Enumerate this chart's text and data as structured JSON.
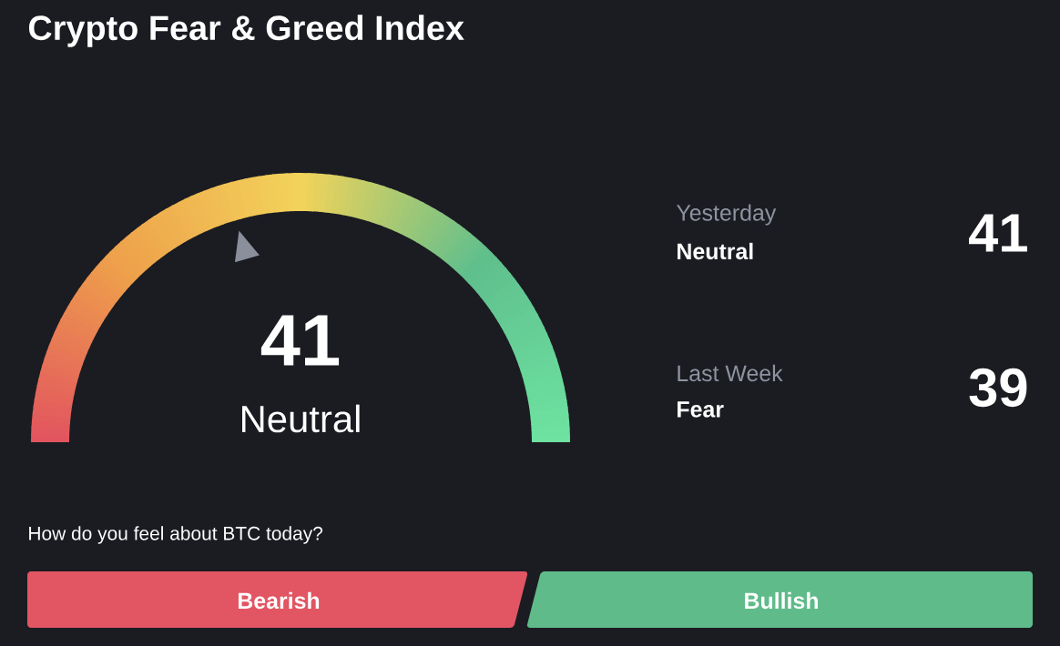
{
  "chart_data": {
    "type": "other",
    "title": "Crypto Fear & Greed Index",
    "values": [
      41
    ],
    "categories": [
      "Neutral"
    ],
    "data_labels": true,
    "annotations": [
      "Yesterday",
      "Neutral",
      "41",
      "Last Week",
      "Fear",
      "39",
      "How do you feel about BTC today?",
      "Bearish",
      "Bullish"
    ]
  }
}
